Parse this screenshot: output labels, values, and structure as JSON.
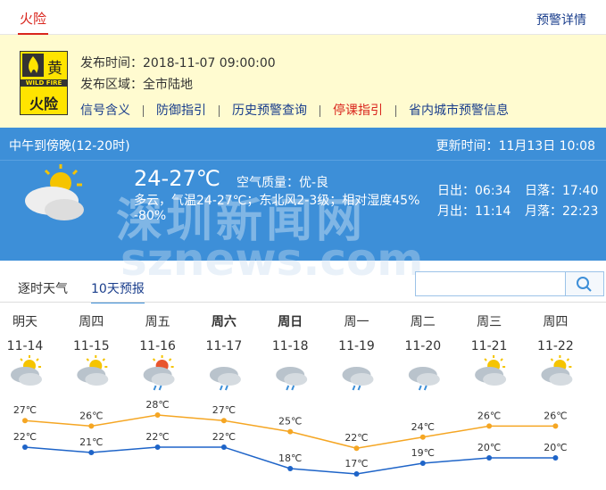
{
  "tabs": {
    "active": "火险",
    "details": "预警详情"
  },
  "warning": {
    "icon_level": "黄",
    "icon_en": "WILD FIRE",
    "icon_label": "火险",
    "time_label": "发布时间：",
    "time": "2018-11-07 09:00:00",
    "area_label": "发布区域：",
    "area": "全市陆地",
    "links": [
      "信号含义",
      "防御指引",
      "历史预警查询",
      "停课指引",
      "省内城市预警信息"
    ]
  },
  "now": {
    "period": "中午到傍晚(12-20时)",
    "update_label": "更新时间：",
    "update": "11月13日 10:08",
    "temp": "24-27℃",
    "air_label": "空气质量：",
    "air": "优-良",
    "desc": "多云，气温24-27℃；东北风2-3级；相对湿度45%-80%",
    "sunrise_label": "日出：",
    "sunrise": "06:34",
    "sunset_label": "日落：",
    "sunset": "17:40",
    "moonrise_label": "月出：",
    "moonrise": "11:14",
    "moonset_label": "月落：",
    "moonset": "22:23"
  },
  "watermark": [
    "深圳新闻网",
    "sznews.com"
  ],
  "forecast": {
    "tabs": [
      "逐时天气",
      "10天预报"
    ],
    "days": [
      {
        "weekday": "明天",
        "date": "11-14",
        "high": 27,
        "high_label": "27℃",
        "low": 22,
        "low_label": "22℃"
      },
      {
        "weekday": "周四",
        "date": "11-15",
        "high": 26,
        "high_label": "26℃",
        "low": 21,
        "low_label": "21℃"
      },
      {
        "weekday": "周五",
        "date": "11-16",
        "high": 28,
        "high_label": "28℃",
        "low": 22,
        "low_label": "22℃"
      },
      {
        "weekday": "周六",
        "date": "11-17",
        "high": 27,
        "high_label": "27℃",
        "low": 22,
        "low_label": "22℃"
      },
      {
        "weekday": "周日",
        "date": "11-18",
        "high": 25,
        "high_label": "25℃",
        "low": 18,
        "low_label": "18℃"
      },
      {
        "weekday": "周一",
        "date": "11-19",
        "high": 22,
        "high_label": "22℃",
        "low": 17,
        "low_label": "17℃"
      },
      {
        "weekday": "周二",
        "date": "11-20",
        "high": 24,
        "high_label": "24℃",
        "low": 19,
        "low_label": "19℃"
      },
      {
        "weekday": "周三",
        "date": "11-21",
        "high": 26,
        "high_label": "26℃",
        "low": 20,
        "low_label": "20℃"
      },
      {
        "weekday": "周四",
        "date": "11-22",
        "high": 26,
        "high_label": "26℃",
        "low": 20,
        "low_label": "20℃"
      }
    ]
  }
}
